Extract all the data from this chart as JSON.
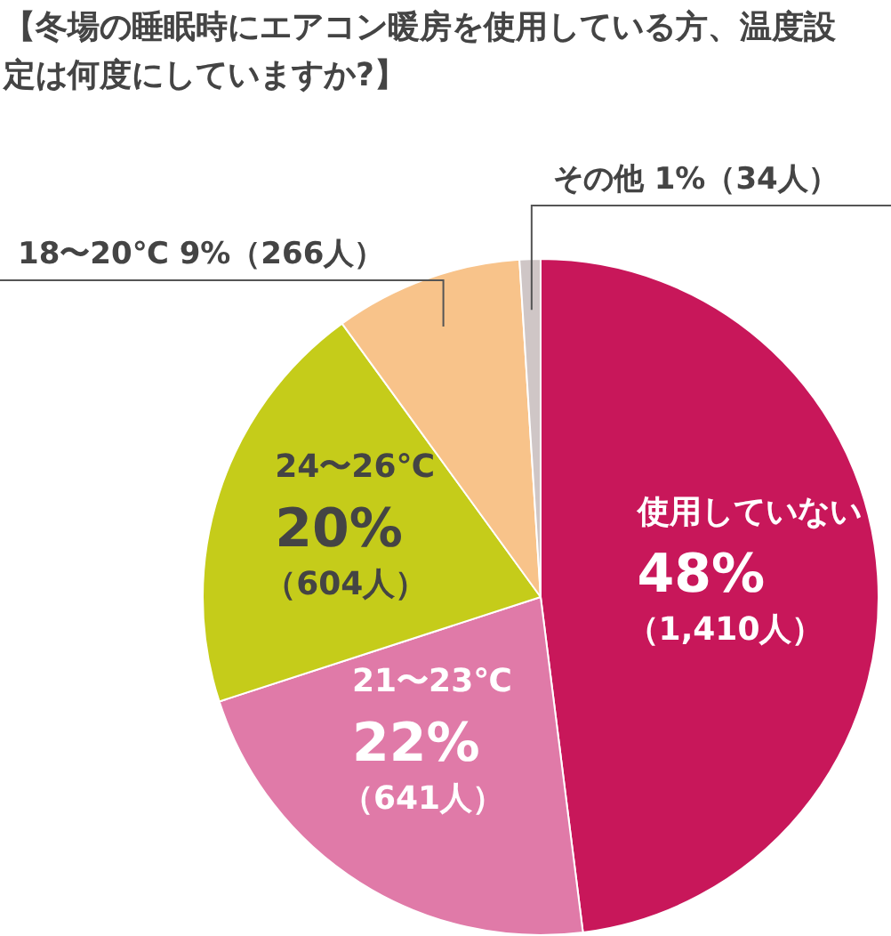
{
  "chart_data": {
    "type": "pie",
    "title": "【冬場の睡眠時にエアコン暖房を使用している方、温度設定は何度にしていますか?】",
    "categories": [
      "使用していない",
      "21〜23℃",
      "24〜26℃",
      "18〜20℃",
      "その他"
    ],
    "values": [
      48,
      22,
      20,
      9,
      1
    ],
    "colors": [
      "#c8175a",
      "#e07aa8",
      "#c5cc1a",
      "#f8c38a",
      "#cfc6c6"
    ],
    "value_labels": [
      "48%\n（1,410人）",
      "22%\n（641人）",
      "20%\n（604人）",
      "9%（266人）",
      "1%（34人）"
    ],
    "legend": false
  }
}
